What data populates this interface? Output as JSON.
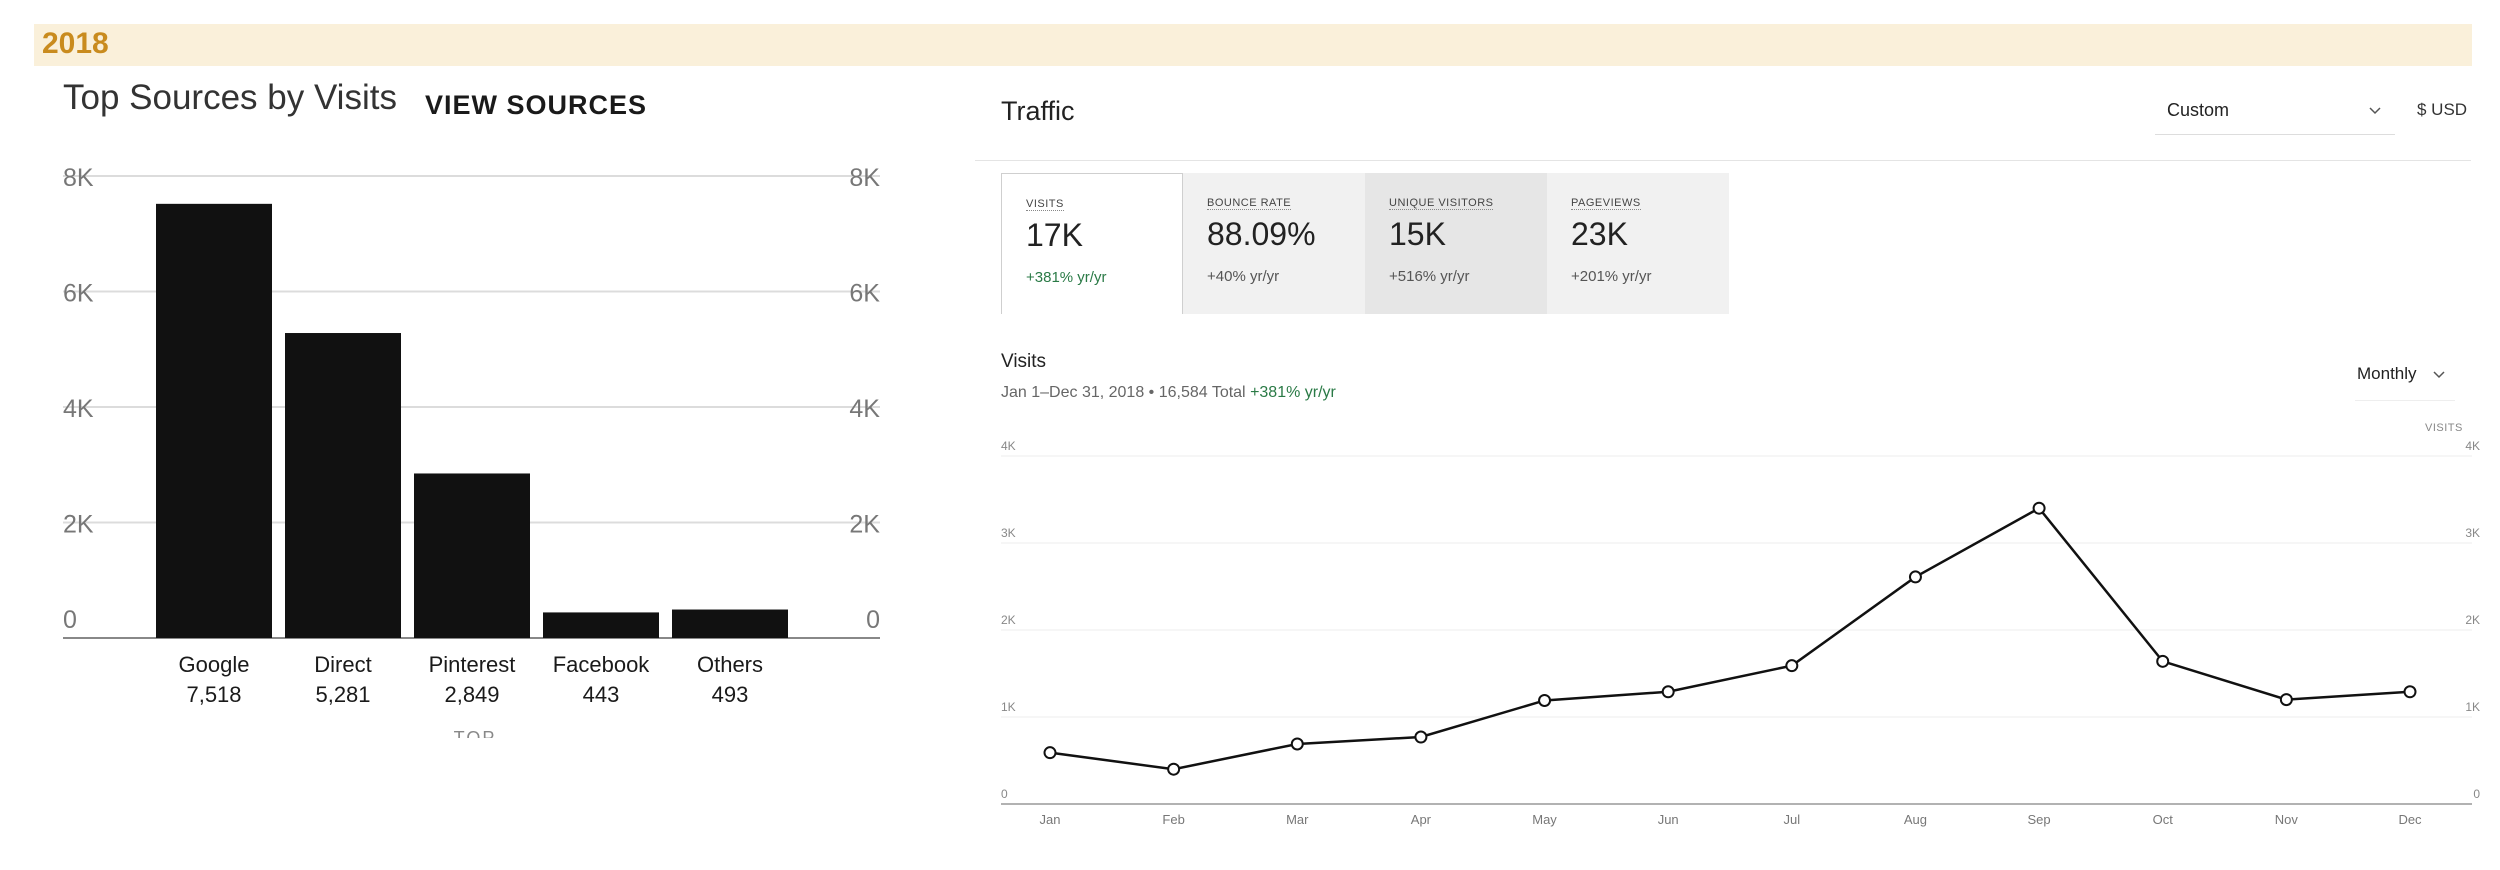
{
  "year_label": "2018",
  "top_sources": {
    "title": "Top Sources by Visits",
    "view_link": "VIEW SOURCES",
    "axis_caption": "TOP SOURCES",
    "chart_data": {
      "type": "bar",
      "categories": [
        "Google",
        "Direct",
        "Pinterest",
        "Facebook",
        "Others"
      ],
      "values": [
        7518,
        5281,
        2849,
        443,
        493
      ],
      "value_labels": [
        "7,518",
        "5,281",
        "2,849",
        "443",
        "493"
      ],
      "ylim": [
        0,
        8000
      ],
      "y_ticks": [
        0,
        2000,
        4000,
        6000,
        8000
      ],
      "y_tick_labels": [
        "0",
        "2K",
        "4K",
        "6K",
        "8K"
      ],
      "grid": true,
      "bar_color": "#111111"
    }
  },
  "traffic": {
    "title": "Traffic",
    "range_select": "Custom",
    "currency": "$ USD",
    "metrics": [
      {
        "label": "VISITS",
        "value": "17K",
        "change": "+381% yr/yr",
        "state": "active",
        "change_color": "#2a7a46"
      },
      {
        "label": "BOUNCE RATE",
        "value": "88.09%",
        "change": "+40% yr/yr",
        "state": "default"
      },
      {
        "label": "UNIQUE VISITORS",
        "value": "15K",
        "change": "+516% yr/yr",
        "state": "hover"
      },
      {
        "label": "PAGEVIEWS",
        "value": "23K",
        "change": "+201% yr/yr",
        "state": "default"
      }
    ],
    "visits": {
      "title": "Visits",
      "date_range": "Jan 1–Dec 31, 2018",
      "total": "16,584 Total",
      "change": "+381% yr/yr",
      "period_select": "Monthly",
      "axis_label": "VISITS"
    }
  },
  "chart_data": {
    "type": "line",
    "x": [
      "Jan",
      "Feb",
      "Mar",
      "Apr",
      "May",
      "Jun",
      "Jul",
      "Aug",
      "Sep",
      "Oct",
      "Nov",
      "Dec"
    ],
    "y": [
      590,
      400,
      690,
      770,
      1190,
      1290,
      1590,
      2610,
      3400,
      1640,
      1200,
      1290
    ],
    "ylim": [
      0,
      4000
    ],
    "y_ticks": [
      0,
      1000,
      2000,
      3000,
      4000
    ],
    "y_tick_labels": [
      "0",
      "1K",
      "2K",
      "3K",
      "4K"
    ],
    "grid": true,
    "line_color": "#111111"
  }
}
